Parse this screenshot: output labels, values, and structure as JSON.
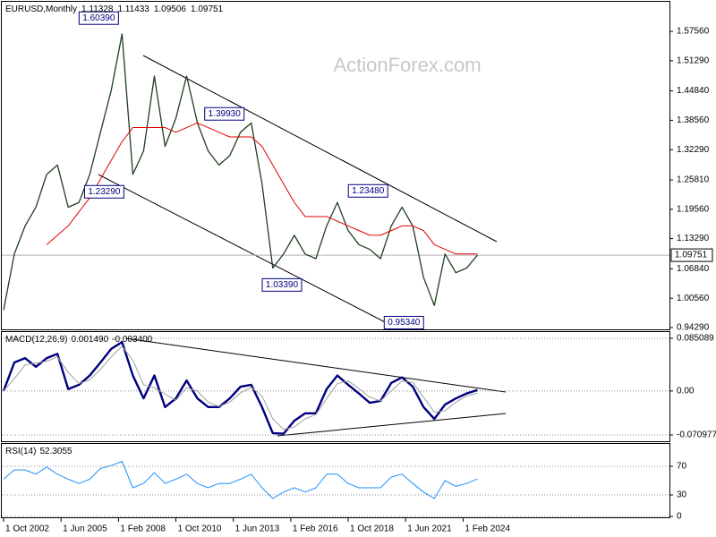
{
  "chart_data": [
    {
      "type": "line",
      "title": "EURUSD,Monthly",
      "watermark": "ActionForex.com",
      "last_bar": {
        "open": 1.11328,
        "high": 1.11433,
        "low": 1.09506,
        "close": 1.09751
      },
      "x": [
        "2002-10-01",
        "2003-04-01",
        "2003-10-01",
        "2004-04-01",
        "2004-10-01",
        "2005-04-01",
        "2005-10-01",
        "2006-04-01",
        "2006-10-01",
        "2007-04-01",
        "2007-10-01",
        "2008-04-01",
        "2008-10-01",
        "2009-04-01",
        "2009-10-01",
        "2010-04-01",
        "2010-10-01",
        "2011-04-01",
        "2011-10-01",
        "2012-04-01",
        "2012-10-01",
        "2013-04-01",
        "2013-10-01",
        "2014-04-01",
        "2014-10-01",
        "2015-04-01",
        "2015-10-01",
        "2016-04-01",
        "2016-10-01",
        "2017-04-01",
        "2017-10-01",
        "2018-04-01",
        "2018-10-01",
        "2019-04-01",
        "2019-10-01",
        "2020-04-01",
        "2020-10-01",
        "2021-04-01",
        "2021-10-01",
        "2022-04-01",
        "2022-10-01",
        "2023-04-01",
        "2023-10-01",
        "2024-04-01",
        "2024-10-01"
      ],
      "xlim": [
        "2002-08-01",
        "2033-09-01"
      ],
      "series": [
        {
          "color": "#1f3f1f",
          "values": [
            0.98,
            1.1,
            1.16,
            1.2,
            1.27,
            1.29,
            1.2,
            1.21,
            1.27,
            1.36,
            1.45,
            1.57,
            1.27,
            1.32,
            1.48,
            1.33,
            1.39,
            1.48,
            1.38,
            1.32,
            1.29,
            1.31,
            1.36,
            1.38,
            1.25,
            1.07,
            1.1,
            1.14,
            1.1,
            1.09,
            1.16,
            1.21,
            1.15,
            1.12,
            1.11,
            1.09,
            1.16,
            1.2,
            1.16,
            1.05,
            0.99,
            1.1,
            1.06,
            1.07,
            1.09751
          ]
        },
        {
          "color": "#e00000",
          "values": [
            null,
            null,
            null,
            null,
            1.12,
            1.14,
            1.16,
            1.19,
            1.22,
            1.26,
            1.3,
            1.34,
            1.37,
            1.37,
            1.37,
            1.37,
            1.36,
            1.37,
            1.38,
            1.37,
            1.36,
            1.35,
            1.35,
            1.35,
            1.33,
            1.29,
            1.25,
            1.21,
            1.18,
            1.18,
            1.18,
            1.17,
            1.16,
            1.15,
            1.14,
            1.14,
            1.15,
            1.16,
            1.16,
            1.15,
            1.12,
            1.11,
            1.1,
            1.1,
            1.1
          ]
        }
      ],
      "annotations": [
        {
          "x": "2008-07-01",
          "value": 1.6039,
          "label": "1.60390"
        },
        {
          "x": "2008-10-01",
          "value": 1.2329,
          "label": "1.23290"
        },
        {
          "x": "2014-05-01",
          "value": 1.3993,
          "label": "1.39930"
        },
        {
          "x": "2017-01-01",
          "value": 1.0339,
          "label": "1.03390"
        },
        {
          "x": "2021-01-01",
          "value": 1.2348,
          "label": "1.23480"
        },
        {
          "x": "2022-09-01",
          "value": 0.9534,
          "label": "0.95340"
        }
      ],
      "ylim": [
        0.939,
        1.633
      ],
      "yticks": [
        {
          "value": 1.5756,
          "label": "1.57560"
        },
        {
          "value": 1.5129,
          "label": "1.51290"
        },
        {
          "value": 1.4484,
          "label": "1.44840"
        },
        {
          "value": 1.3856,
          "label": "1.38560"
        },
        {
          "value": 1.3229,
          "label": "1.32290"
        },
        {
          "value": 1.2581,
          "label": "1.25810"
        },
        {
          "value": 1.1956,
          "label": "1.19560"
        },
        {
          "value": 1.1329,
          "label": "1.13290"
        },
        {
          "value": 1.0684,
          "label": "1.06840"
        },
        {
          "value": 1.0056,
          "label": "1.00560"
        },
        {
          "value": 0.9429,
          "label": "0.94290"
        }
      ],
      "grid": false
    },
    {
      "type": "line",
      "title": "MACD(12,26,9)",
      "indicator_values": [
        {
          "value": 0.00149,
          "label": "0.001490"
        },
        {
          "value": -0.0034,
          "label": "-0.003400"
        }
      ],
      "x": [
        "2002-10-01",
        "2003-04-01",
        "2003-10-01",
        "2004-04-01",
        "2004-10-01",
        "2005-04-01",
        "2005-10-01",
        "2006-04-01",
        "2006-10-01",
        "2007-04-01",
        "2007-10-01",
        "2008-04-01",
        "2008-10-01",
        "2009-04-01",
        "2009-10-01",
        "2010-04-01",
        "2010-10-01",
        "2011-04-01",
        "2011-10-01",
        "2012-04-01",
        "2012-10-01",
        "2013-04-01",
        "2013-10-01",
        "2014-04-01",
        "2014-10-01",
        "2015-04-01",
        "2015-10-01",
        "2016-04-01",
        "2016-10-01",
        "2017-04-01",
        "2017-10-01",
        "2018-04-01",
        "2018-10-01",
        "2019-04-01",
        "2019-10-01",
        "2020-04-01",
        "2020-10-01",
        "2021-04-01",
        "2021-10-01",
        "2022-04-01",
        "2022-10-01",
        "2023-04-01",
        "2023-10-01",
        "2024-04-01",
        "2024-10-01"
      ],
      "xlim": [
        "2002-08-01",
        "2033-09-01"
      ],
      "series": [
        {
          "color": "#000080",
          "values": [
            0,
            0.046,
            0.053,
            0.039,
            0.053,
            0.06,
            0.003,
            0.01,
            0.025,
            0.046,
            0.068,
            0.079,
            0.025,
            -0.012,
            0.025,
            -0.026,
            -0.012,
            0.017,
            -0.012,
            -0.026,
            -0.026,
            -0.012,
            0.007,
            0.01,
            -0.026,
            -0.068,
            -0.069,
            -0.048,
            -0.036,
            -0.036,
            0.003,
            0.025,
            0.01,
            -0.004,
            -0.019,
            -0.016,
            0.013,
            0.022,
            0.007,
            -0.026,
            -0.045,
            -0.022,
            -0.012,
            -0.004,
            0.00149
          ]
        },
        {
          "color": "#a0a0a0",
          "values": [
            0,
            0.02,
            0.042,
            0.045,
            0.048,
            0.055,
            0.03,
            0.012,
            0.018,
            0.035,
            0.055,
            0.072,
            0.05,
            0.01,
            0.005,
            -0.005,
            -0.015,
            0.005,
            0,
            -0.018,
            -0.025,
            -0.018,
            -0.003,
            0.006,
            -0.008,
            -0.045,
            -0.062,
            -0.058,
            -0.045,
            -0.038,
            -0.012,
            0.012,
            0.016,
            0.004,
            -0.01,
            -0.016,
            0,
            0.016,
            0.014,
            -0.01,
            -0.034,
            -0.032,
            -0.018,
            -0.008,
            -0.0034
          ]
        }
      ],
      "ylim": [
        -0.0811,
        0.0937
      ],
      "yticks": [
        0.085089,
        {
          "value": 0,
          "label": "0.00"
        },
        -0.070977
      ],
      "grid": true
    },
    {
      "type": "line",
      "title": "RSI(14)",
      "indicator_values": [
        52.3055
      ],
      "x": [
        "2002-10-01",
        "2003-04-01",
        "2003-10-01",
        "2004-04-01",
        "2004-10-01",
        "2005-04-01",
        "2005-10-01",
        "2006-04-01",
        "2006-10-01",
        "2007-04-01",
        "2007-10-01",
        "2008-04-01",
        "2008-10-01",
        "2009-04-01",
        "2009-10-01",
        "2010-04-01",
        "2010-10-01",
        "2011-04-01",
        "2011-10-01",
        "2012-04-01",
        "2012-10-01",
        "2013-04-01",
        "2013-10-01",
        "2014-04-01",
        "2014-10-01",
        "2015-04-01",
        "2015-10-01",
        "2016-04-01",
        "2016-10-01",
        "2017-04-01",
        "2017-10-01",
        "2018-04-01",
        "2018-10-01",
        "2019-04-01",
        "2019-10-01",
        "2020-04-01",
        "2020-10-01",
        "2021-04-01",
        "2021-10-01",
        "2022-04-01",
        "2022-10-01",
        "2023-04-01",
        "2023-10-01",
        "2024-04-01",
        "2024-10-01"
      ],
      "xlim": [
        "2002-08-01",
        "2033-09-01"
      ],
      "xticks": [
        {
          "value": "2002-10-01",
          "label": "1 Oct 2002"
        },
        {
          "value": "2005-06-01",
          "label": "1 Jun 2005"
        },
        {
          "value": "2008-02-01",
          "label": "1 Feb 2008"
        },
        {
          "value": "2010-10-01",
          "label": "1 Oct 2010"
        },
        {
          "value": "2013-06-01",
          "label": "1 Jun 2013"
        },
        {
          "value": "2016-02-01",
          "label": "1 Feb 2016"
        },
        {
          "value": "2018-10-01",
          "label": "1 Oct 2018"
        },
        {
          "value": "2021-06-01",
          "label": "1 Jun 2021"
        },
        {
          "value": "2024-02-01",
          "label": "1 Feb 2024"
        }
      ],
      "series": [
        {
          "color": "#1e90ff",
          "values": [
            52,
            65,
            65,
            59,
            69,
            59,
            52,
            46,
            52,
            67,
            71,
            77,
            40,
            46,
            61,
            46,
            52,
            59,
            46,
            40,
            46,
            46,
            52,
            59,
            40,
            25,
            34,
            40,
            34,
            40,
            59,
            59,
            46,
            40,
            40,
            40,
            55,
            59,
            46,
            34,
            25,
            50,
            42,
            46,
            52.3055
          ]
        }
      ],
      "ylim": [
        0,
        100
      ],
      "yticks": [
        70,
        30,
        0
      ],
      "grid": true
    }
  ]
}
